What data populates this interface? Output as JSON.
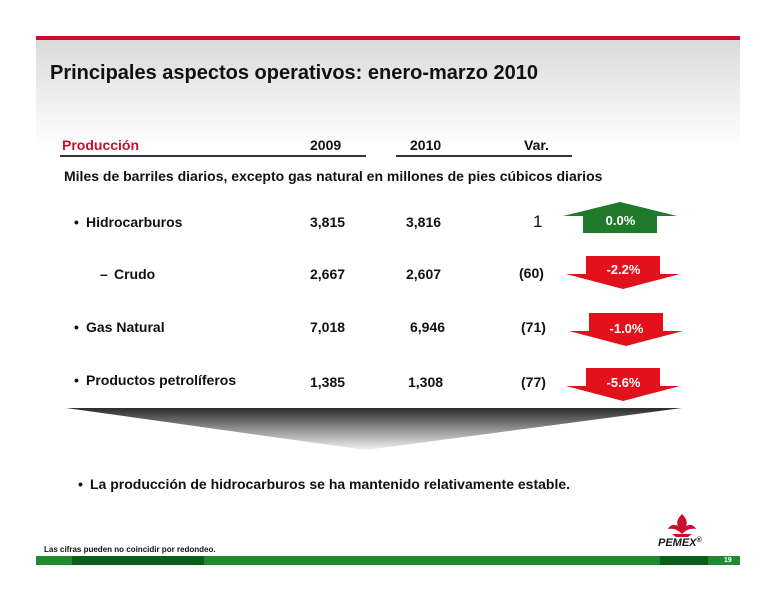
{
  "title": "Principales aspectos operativos: enero-marzo 2010",
  "table": {
    "headers": {
      "production": "Producción",
      "y2009": "2009",
      "y2010": "2010",
      "var": "Var."
    },
    "subtitle": "Miles de barriles diarios, excepto gas natural en millones de pies cúbicos diarios",
    "rows": [
      {
        "bullet": "•",
        "label": "Hidrocarburos",
        "v2009": "3,815",
        "v2010": "3,816",
        "var": "1",
        "pct": "0.0%",
        "direction": "up",
        "color": "#1f7a2c"
      },
      {
        "bullet": "–",
        "label": "Crudo",
        "v2009": "2,667",
        "v2010": "2,607",
        "var": "(60)",
        "pct": "-2.2%",
        "direction": "down",
        "color": "#e3111b"
      },
      {
        "bullet": "•",
        "label": "Gas Natural",
        "v2009": "7,018",
        "v2010": "6,946",
        "var": "(71)",
        "pct": "-1.0%",
        "direction": "down",
        "color": "#e3111b"
      },
      {
        "bullet": "•",
        "label": "Productos petrolíferos",
        "v2009": "1,385",
        "v2010": "1,308",
        "var": "(77)",
        "pct": "-5.6%",
        "direction": "down",
        "color": "#e3111b"
      }
    ]
  },
  "conclusion": {
    "bullet": "•",
    "text": "La producción de hidrocarburos se ha mantenido relativamente estable."
  },
  "footnote": "Las cifras pueden no coincidir por redondeo.",
  "logo": {
    "text": "PEMEX",
    "mark": "®"
  },
  "page_number": "19",
  "colors": {
    "brand_red": "#c8102e",
    "brand_green": "#1f8a2f",
    "up": "#1f7a2c",
    "down": "#e3111b"
  }
}
